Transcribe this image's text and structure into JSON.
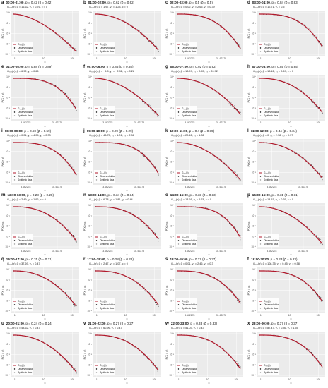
{
  "labels": {
    "ylabel": "P(X > x)",
    "xlabel": "x",
    "legend_model": "G₃,₂(x)",
    "legend_observed": "Observed data",
    "legend_synthetic": "Synthetic data",
    "p_sep": ", p",
    "p_tail": " (p̄",
    "p_close": ")"
  },
  "colors": {
    "model": "#b2182b",
    "observed": "#000000",
    "synthetic": "#9a9a9a",
    "panel_bg": "#ebebeb",
    "grid": "#ffffff"
  },
  "chart_data": [
    {
      "type": "line",
      "letter": "a",
      "time": "00:00-01:00",
      "p": "0.42",
      "p_bar": "0.42",
      "params": "G₃,₂(x): β = 16.62, γ₁ = 0.76, c = 0",
      "ticks_x": [
        "1",
        "10",
        "100"
      ],
      "ticks_y": [
        "10⁰",
        "10⁻¹",
        "10⁻²",
        "10⁻³",
        "10⁻⁴"
      ],
      "log_x": true,
      "log_y": true,
      "legend": "left"
    },
    {
      "type": "line",
      "letter": "b",
      "time": "01:00-02:00",
      "p": "0.62",
      "p_bar": "0.62",
      "params": "G₃,₂(x): β = 1.97, γ₁ = 1.23, c = 0",
      "ticks_x": [
        "1",
        "10",
        "100"
      ],
      "ticks_y": [
        "10⁰",
        "10⁻¹",
        "10⁻²",
        "10⁻³",
        "10⁻⁴"
      ],
      "log_x": true,
      "log_y": true,
      "legend": "left"
    },
    {
      "type": "line",
      "letter": "c",
      "time": "02:00-03:00",
      "p": "0.5",
      "p_bar": "0.5",
      "params": "G₃,₂(x): β = 0.02, γ₁ = 2.65, γ₂ = 0.39",
      "ticks_x": [
        "3.162278",
        "31.62278"
      ],
      "ticks_y": [
        "10⁰",
        "10⁻¹",
        "10⁻²",
        "10⁻³",
        "10⁻⁴"
      ],
      "log_x": true,
      "log_y": true,
      "legend": "left"
    },
    {
      "type": "line",
      "letter": "d",
      "time": "03:00-04:00",
      "p": "0.84",
      "p_bar": "0.83",
      "params": "G₃,₂(x): β = 12.71, γ₁ = 0.5",
      "ticks_x": [
        "1",
        "10",
        "100"
      ],
      "ticks_y": [
        "10⁰",
        "10⁻¹",
        "10⁻²",
        "10⁻³",
        "10⁻⁴"
      ],
      "log_x": true,
      "log_y": true,
      "legend": "left"
    },
    {
      "type": "line",
      "letter": "e",
      "time": "04:00-05:00",
      "p": "0.88",
      "p_bar": "0.89",
      "params": "G₃,₂(x): β = 6.92, γ₁ = 0.66",
      "ticks_x": [
        "3.162278",
        "31.62278"
      ],
      "ticks_y": [
        "10⁰",
        "10⁻¹",
        "10⁻²",
        "10⁻³",
        "10⁻⁴"
      ],
      "log_x": true,
      "log_y": true,
      "legend": "left"
    },
    {
      "type": "line",
      "letter": "f",
      "time": "05:00-06:00",
      "p": "0.85",
      "p_bar": "0.85",
      "params": "G₃,₂(x): β = −5.5, γ₁ = −2.92, γ₂ = 0.28",
      "ticks_x": [
        "3.162278",
        "31.62278"
      ],
      "ticks_y": [
        "10⁰",
        "10⁻¹",
        "10⁻²",
        "10⁻³",
        "10⁻⁴"
      ],
      "log_x": true,
      "log_y": true,
      "legend": "left"
    },
    {
      "type": "line",
      "letter": "g",
      "time": "06:00-07:00",
      "p": "0.92",
      "p_bar": "0.92",
      "params": "G₃,₂(x): β = 18.99, γ₁ = 0.55, γ₂ = 20.72",
      "ticks_x": [
        "3.162278",
        "31.62278"
      ],
      "ticks_y": [
        "10⁰",
        "10⁻¹",
        "10⁻²",
        "10⁻³",
        "10⁻⁴"
      ],
      "log_x": true,
      "log_y": true,
      "legend": "left"
    },
    {
      "type": "line",
      "letter": "h",
      "time": "07:00-08:00",
      "p": "0.85",
      "p_bar": "0.85",
      "params": "G₃,₂(x): β = 18.12, γ₁ = 0.69, c = 0",
      "ticks_x": [
        "1",
        "10",
        "100"
      ],
      "ticks_y": [
        "10⁰",
        "10⁻¹",
        "10⁻²",
        "10⁻³",
        "10⁻⁴"
      ],
      "log_x": true,
      "log_y": true,
      "legend": "left"
    },
    {
      "type": "line",
      "letter": "i",
      "time": "08:00-09:00",
      "p": "0.59",
      "p_bar": "0.59",
      "params": "G₃,₂(x): β = 0.01, γ₁ = 4.05, γ₂ = 0.33",
      "ticks_x": [
        "3.162278",
        "31.62278"
      ],
      "ticks_y": [
        "10⁰",
        "10⁻¹",
        "10⁻²",
        "10⁻³",
        "10⁻⁴"
      ],
      "log_x": true,
      "log_y": true,
      "legend": "left"
    },
    {
      "type": "line",
      "letter": "j",
      "time": "09:00-10:00",
      "p": "0.29",
      "p_bar": "0.29",
      "params": "G₃,₂(x): β = 43.75, γ₁ = 1.01, γ₂ = 2.86",
      "ticks_x": [
        "3.162278",
        "31.62278"
      ],
      "ticks_y": [
        "10⁰",
        "10⁻¹",
        "10⁻²",
        "10⁻³",
        "10⁻⁴"
      ],
      "log_x": true,
      "log_y": true,
      "legend": "left"
    },
    {
      "type": "line",
      "letter": "k",
      "time": "10:00-11:00",
      "p": "0.4",
      "p_bar": "0.39",
      "params": "G₃,₂(x): β = 20.42, γ₁ = 1.32",
      "ticks_x": [
        "3.162278",
        "31.62278"
      ],
      "ticks_y": [
        "10⁰",
        "10⁻¹",
        "10⁻²",
        "10⁻³",
        "10⁻⁴"
      ],
      "log_x": true,
      "log_y": true,
      "legend": "left"
    },
    {
      "type": "line",
      "letter": "l",
      "time": "11:00-12:00",
      "p": "0.34",
      "p_bar": "0.34",
      "params": "G₃,₂(x): β = 0, γ₁ = 2.78, γ₂ = 0.37",
      "ticks_x": [
        "3.162278",
        "31.62278"
      ],
      "ticks_y": [
        "10⁰",
        "10⁻¹",
        "10⁻²",
        "10⁻³",
        "10⁻⁴"
      ],
      "log_x": true,
      "log_y": true,
      "legend": "left"
    },
    {
      "type": "line",
      "letter": "m",
      "time": "12:00-13:00",
      "p": "0.28",
      "p_bar": "0.28",
      "params": "G₃,₂(x): β = 2.49, γ₁ = 1.96, c = 0",
      "ticks_x": [
        "3.162278",
        "31.62278"
      ],
      "ticks_y": [
        "10⁰",
        "10⁻¹",
        "10⁻²",
        "10⁻³",
        "10⁻⁴"
      ],
      "log_x": true,
      "log_y": true,
      "legend": "left"
    },
    {
      "type": "line",
      "letter": "n",
      "time": "13:00-14:00",
      "p": "0.34",
      "p_bar": "0.34",
      "params": "G₃,₂(x): β = 6.78, γ₁ = 1.81, γ₂ = 0.44",
      "ticks_x": [
        "3.162278",
        "31.62278"
      ],
      "ticks_y": [
        "10⁰",
        "10⁻¹",
        "10⁻²",
        "10⁻³",
        "10⁻⁴"
      ],
      "log_x": true,
      "log_y": true,
      "legend": "left"
    },
    {
      "type": "line",
      "letter": "o",
      "time": "14:00-15:00",
      "p": "0.33",
      "p_bar": "0.33",
      "params": "G₃,₂(x): β = 13.91, γ₁ = 5.78, c = 0",
      "ticks_x": [
        "3.162278",
        "31.62278"
      ],
      "ticks_y": [
        "10⁰",
        "10⁻¹",
        "10⁻²",
        "10⁻³",
        "10⁻⁴"
      ],
      "log_x": true,
      "log_y": true,
      "legend": "left"
    },
    {
      "type": "line",
      "letter": "p",
      "time": "15:00-16:00",
      "p": "0.31",
      "p_bar": "0.31",
      "params": "G₃,₂(x): β = 14.15, γ₁ = 0.65, c = 0",
      "ticks_x": [
        "3.162278",
        "31.62278"
      ],
      "ticks_y": [
        "10⁰",
        "10⁻¹",
        "10⁻²",
        "10⁻³",
        "10⁻⁴"
      ],
      "log_x": true,
      "log_y": true,
      "legend": "left"
    },
    {
      "type": "line",
      "letter": "q",
      "time": "16:00-17:00",
      "p": "0.31",
      "p_bar": "0.31",
      "params": "G₃,₂(x): β = 37.69, γ₁ = 0.47",
      "ticks_x": [
        "1",
        "10",
        "100"
      ],
      "ticks_y": [
        "10⁰",
        "10⁻¹",
        "10⁻²",
        "10⁻³",
        "10⁻⁴"
      ],
      "log_x": true,
      "log_y": true,
      "legend": "left"
    },
    {
      "type": "line",
      "letter": "r",
      "time": "17:00-18:00",
      "p": "0.28",
      "p_bar": "0.28",
      "params": "G₃,₂(x): β = 2.47, γ₁ = 1.07, c = 0",
      "ticks_x": [
        "1",
        "10",
        "100"
      ],
      "ticks_y": [
        "10⁰",
        "10⁻¹",
        "10⁻²",
        "10⁻³",
        "10⁻⁴"
      ],
      "log_x": true,
      "log_y": true,
      "legend": "left"
    },
    {
      "type": "line",
      "letter": "s",
      "time": "18:00-19:00",
      "p": "0.37",
      "p_bar": "0.37",
      "params": "G₃,₂(x): β = 0.01, γ₁ = 2.46, γ₂ = 0.3",
      "ticks_x": [
        "3.162278",
        "31.62278"
      ],
      "ticks_y": [
        "10⁰",
        "10⁻¹",
        "10⁻²",
        "10⁻³",
        "10⁻⁴"
      ],
      "log_x": true,
      "log_y": true,
      "legend": "left"
    },
    {
      "type": "line",
      "letter": "t",
      "time": "19:00-20:00",
      "p": "0.23",
      "p_bar": "0.23",
      "params": "G₃,₂(x): β = 108.35, γ₁ = 0.45, γ₂ = 0.58",
      "ticks_x": [
        "1",
        "10",
        "100"
      ],
      "ticks_y": [
        "10⁰",
        "10⁻¹",
        "10⁻²",
        "10⁻³",
        "10⁻⁴"
      ],
      "log_x": true,
      "log_y": true,
      "legend": "left"
    },
    {
      "type": "line",
      "letter": "u",
      "time": "20:00-21:00",
      "p": "0.24",
      "p_bar": "0.24",
      "params": "G₃,₂(x): β = 43.62, γ₁ = 0.47",
      "ticks_x": [
        "1",
        "10",
        "100"
      ],
      "ticks_y": [
        "10⁰",
        "10⁻¹",
        "10⁻²",
        "10⁻³",
        "10⁻⁴"
      ],
      "log_x": true,
      "log_y": true,
      "legend": "left"
    },
    {
      "type": "line",
      "letter": "v",
      "time": "21:00-22:00",
      "p": "0.27",
      "p_bar": "0.27",
      "params": "G₃,₂(x): β = 60.96, γ₁ = 0.47",
      "ticks_x": [
        "1",
        "10",
        "100"
      ],
      "ticks_y": [
        "10⁰",
        "10⁻¹",
        "10⁻²",
        "10⁻³",
        "10⁻⁴"
      ],
      "log_x": true,
      "log_y": true,
      "legend": "left"
    },
    {
      "type": "line",
      "letter": "w",
      "time": "22:00-23:00",
      "p": "0.33",
      "p_bar": "0.33",
      "params": "G₃,₂(x): β = 51.03, γ₁ = 0.43",
      "ticks_x": [
        "1",
        "10",
        "100"
      ],
      "ticks_y": [
        "10⁰",
        "10⁻¹",
        "10⁻²",
        "10⁻³",
        "10⁻⁴"
      ],
      "log_x": true,
      "log_y": true,
      "legend": "left"
    },
    {
      "type": "line",
      "letter": "x",
      "time": "23:00-00:00",
      "p": "0.37",
      "p_bar": "0.37",
      "params": "G₃,₂(x): β = 87.47, γ₁ = 0.36, γ₂ = 1.55",
      "ticks_x": [
        "1",
        "10",
        "100"
      ],
      "ticks_y": [
        "10⁰",
        "10⁻¹",
        "10⁻²",
        "10⁻³",
        "10⁻⁴"
      ],
      "log_x": true,
      "log_y": true,
      "legend": "left"
    }
  ]
}
